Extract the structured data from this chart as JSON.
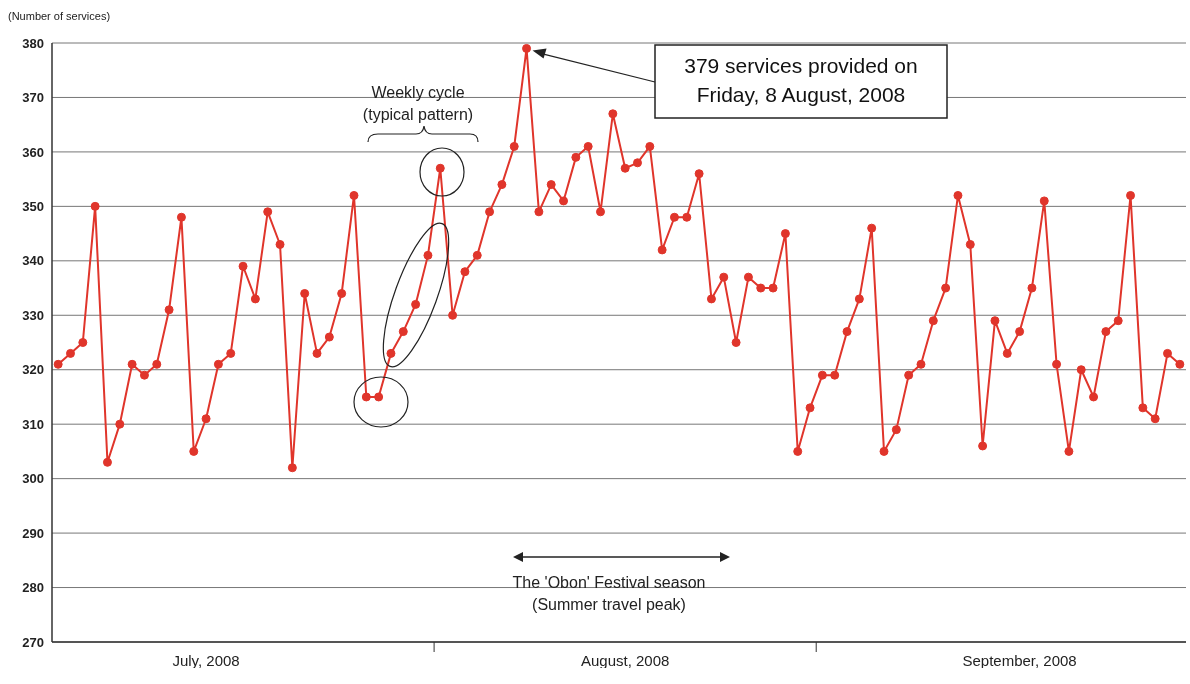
{
  "chart_data": {
    "type": "line",
    "ylabel": "(Number of services)",
    "x": [
      "2008-07-01",
      "2008-07-02",
      "2008-07-03",
      "2008-07-04",
      "2008-07-05",
      "2008-07-06",
      "2008-07-07",
      "2008-07-08",
      "2008-07-09",
      "2008-07-10",
      "2008-07-11",
      "2008-07-12",
      "2008-07-13",
      "2008-07-14",
      "2008-07-15",
      "2008-07-16",
      "2008-07-17",
      "2008-07-18",
      "2008-07-19",
      "2008-07-20",
      "2008-07-21",
      "2008-07-22",
      "2008-07-23",
      "2008-07-24",
      "2008-07-25",
      "2008-07-26",
      "2008-07-27",
      "2008-07-28",
      "2008-07-29",
      "2008-07-30",
      "2008-07-31",
      "2008-08-01",
      "2008-08-02",
      "2008-08-03",
      "2008-08-04",
      "2008-08-05",
      "2008-08-06",
      "2008-08-07",
      "2008-08-08",
      "2008-08-09",
      "2008-08-10",
      "2008-08-11",
      "2008-08-12",
      "2008-08-13",
      "2008-08-14",
      "2008-08-15",
      "2008-08-16",
      "2008-08-17",
      "2008-08-18",
      "2008-08-19",
      "2008-08-20",
      "2008-08-21",
      "2008-08-22",
      "2008-08-23",
      "2008-08-24",
      "2008-08-25",
      "2008-08-26",
      "2008-08-27",
      "2008-08-28",
      "2008-08-29",
      "2008-08-30",
      "2008-08-31",
      "2008-09-01",
      "2008-09-02",
      "2008-09-03",
      "2008-09-04",
      "2008-09-05",
      "2008-09-06",
      "2008-09-07",
      "2008-09-08",
      "2008-09-09",
      "2008-09-10",
      "2008-09-11",
      "2008-09-12",
      "2008-09-13",
      "2008-09-14",
      "2008-09-15",
      "2008-09-16",
      "2008-09-17",
      "2008-09-18",
      "2008-09-19",
      "2008-09-20",
      "2008-09-21",
      "2008-09-22",
      "2008-09-23",
      "2008-09-24",
      "2008-09-25",
      "2008-09-26",
      "2008-09-27",
      "2008-09-28",
      "2008-09-29",
      "2008-09-30"
    ],
    "values": [
      321,
      323,
      325,
      350,
      303,
      310,
      321,
      319,
      321,
      331,
      348,
      305,
      311,
      321,
      323,
      339,
      333,
      349,
      343,
      302,
      334,
      323,
      326,
      334,
      352,
      315,
      315,
      323,
      327,
      332,
      341,
      357,
      330,
      338,
      341,
      349,
      354,
      361,
      379,
      349,
      354,
      351,
      359,
      361,
      349,
      367,
      357,
      358,
      361,
      342,
      348,
      348,
      356,
      333,
      337,
      325,
      337,
      335,
      335,
      345,
      305,
      313,
      319,
      319,
      327,
      333,
      346,
      305,
      309,
      319,
      321,
      329,
      335,
      352,
      343,
      306,
      329,
      323,
      327,
      335,
      351,
      321,
      305,
      320,
      315,
      327,
      329,
      352,
      313,
      311,
      323,
      321
    ],
    "color": "#e0352b",
    "marker": "circle",
    "line_style": "solid",
    "grid": "y",
    "legend": false,
    "xlim": [
      "2008-06-30T12:00",
      "2008-09-30T12:00"
    ],
    "xticks": [
      {
        "value": "2008-07-13",
        "label": "July, 2008"
      },
      {
        "value": "2008-07-31T12:00",
        "label": null
      },
      {
        "value": "2008-08-16",
        "label": "August, 2008"
      },
      {
        "value": "2008-08-31T12:00",
        "label": null
      },
      {
        "value": "2008-09-17",
        "label": "September, 2008"
      }
    ],
    "ylim": [
      270,
      380
    ],
    "yticks": [
      270,
      280,
      290,
      300,
      310,
      320,
      330,
      340,
      350,
      360,
      370,
      380
    ],
    "annotations": [
      "Weekly cycle\n(typical pattern)",
      "379 services provided on\nFriday, 8 August, 2008",
      "The 'Obon' Festival season\n(Summer travel peak)"
    ]
  }
}
